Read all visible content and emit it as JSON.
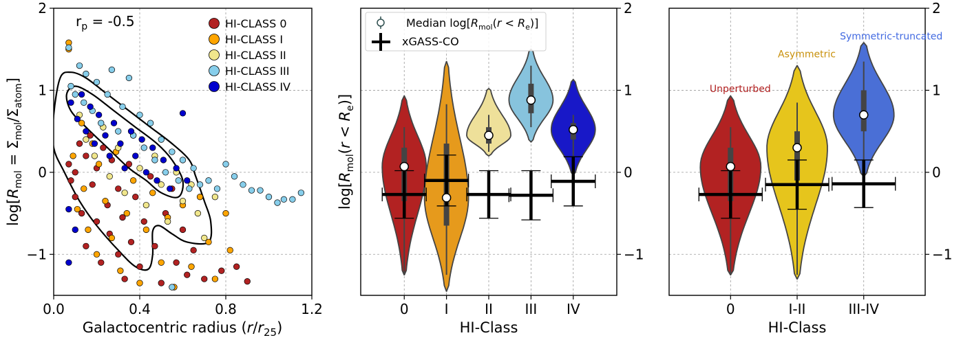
{
  "chart_data": [
    {
      "type": "scatter",
      "xlabel": "Galactocentric radius (r/r₂₅)",
      "ylabel": "log[R_mol = Σ_mol/Σ_atom]",
      "xlim": [
        0.0,
        1.2
      ],
      "ylim": [
        -1.5,
        2.0
      ],
      "xticks": [
        {
          "v": 0.0,
          "t": "0.0"
        },
        {
          "v": 0.4,
          "t": "0.4"
        },
        {
          "v": 0.8,
          "t": "0.8"
        },
        {
          "v": 1.2,
          "t": "1.2"
        }
      ],
      "yticks": [
        {
          "v": -1,
          "t": "−1"
        },
        {
          "v": 0,
          "t": "0"
        },
        {
          "v": 1,
          "t": "1"
        },
        {
          "v": 2,
          "t": "2"
        }
      ],
      "grid": true,
      "annotation": {
        "label": "r",
        "sub": "p",
        "rest": " = -0.5"
      },
      "legend_position": "top-right",
      "series": [
        {
          "name": "HI-CLASS 0",
          "color": "#b22222",
          "points": [
            [
              0.07,
              0.1
            ],
            [
              0.08,
              -0.1
            ],
            [
              0.1,
              0.0
            ],
            [
              0.1,
              -0.3
            ],
            [
              0.12,
              0.35
            ],
            [
              0.13,
              -0.5
            ],
            [
              0.15,
              0.2
            ],
            [
              0.15,
              -0.9
            ],
            [
              0.17,
              0.45
            ],
            [
              0.18,
              -0.15
            ],
            [
              0.2,
              -0.6
            ],
            [
              0.2,
              0.05
            ],
            [
              0.22,
              -1.1
            ],
            [
              0.23,
              0.3
            ],
            [
              0.25,
              -0.4
            ],
            [
              0.26,
              -0.75
            ],
            [
              0.27,
              0.15
            ],
            [
              0.3,
              -0.2
            ],
            [
              0.3,
              -1.0
            ],
            [
              0.32,
              -0.55
            ],
            [
              0.33,
              -1.3
            ],
            [
              0.35,
              0.1
            ],
            [
              0.36,
              -0.85
            ],
            [
              0.38,
              -0.3
            ],
            [
              0.4,
              -1.15
            ],
            [
              0.42,
              -0.6
            ],
            [
              0.45,
              -0.05
            ],
            [
              0.47,
              -0.9
            ],
            [
              0.5,
              -1.35
            ],
            [
              0.52,
              -0.5
            ],
            [
              0.55,
              -0.2
            ],
            [
              0.57,
              -1.1
            ],
            [
              0.6,
              -0.7
            ],
            [
              0.62,
              -1.25
            ],
            [
              0.65,
              -0.95
            ],
            [
              0.7,
              -1.3
            ],
            [
              0.78,
              -1.2
            ],
            [
              0.85,
              -1.15
            ],
            [
              0.9,
              -1.33
            ]
          ]
        },
        {
          "name": "HI-CLASS I",
          "color": "#ffa500",
          "points": [
            [
              0.07,
              1.58
            ],
            [
              0.07,
              1.5
            ],
            [
              0.09,
              0.2
            ],
            [
              0.11,
              -0.45
            ],
            [
              0.13,
              0.6
            ],
            [
              0.14,
              -0.2
            ],
            [
              0.16,
              -0.7
            ],
            [
              0.18,
              0.35
            ],
            [
              0.2,
              -1.0
            ],
            [
              0.21,
              0.1
            ],
            [
              0.24,
              -0.35
            ],
            [
              0.27,
              -0.8
            ],
            [
              0.29,
              0.25
            ],
            [
              0.31,
              -1.2
            ],
            [
              0.34,
              -0.5
            ],
            [
              0.37,
              -0.1
            ],
            [
              0.4,
              -1.35
            ],
            [
              0.43,
              -0.7
            ],
            [
              0.46,
              -0.25
            ],
            [
              0.5,
              -1.1
            ],
            [
              0.53,
              -0.55
            ],
            [
              0.56,
              -1.4
            ],
            [
              0.6,
              -0.4
            ],
            [
              0.64,
              -1.15
            ],
            [
              0.68,
              -0.3
            ],
            [
              0.72,
              -0.85
            ],
            [
              0.75,
              -1.3
            ],
            [
              0.8,
              -0.5
            ],
            [
              0.82,
              -0.95
            ]
          ]
        },
        {
          "name": "HI-CLASS II",
          "color": "#f0e68c",
          "points": [
            [
              0.12,
              0.7
            ],
            [
              0.15,
              0.4
            ],
            [
              0.19,
              0.2
            ],
            [
              0.23,
              0.55
            ],
            [
              0.26,
              -0.05
            ],
            [
              0.3,
              0.3
            ],
            [
              0.33,
              -0.25
            ],
            [
              0.37,
              0.45
            ],
            [
              0.4,
              0.05
            ],
            [
              0.43,
              -0.4
            ],
            [
              0.47,
              0.2
            ],
            [
              0.5,
              -0.15
            ],
            [
              0.53,
              -0.6
            ],
            [
              0.57,
              0.0
            ],
            [
              0.6,
              -0.35
            ],
            [
              0.64,
              -0.15
            ],
            [
              0.67,
              -0.5
            ],
            [
              0.7,
              -0.8
            ],
            [
              0.75,
              -0.3
            ]
          ]
        },
        {
          "name": "HI-CLASS III",
          "color": "#87ceeb",
          "points": [
            [
              0.07,
              1.52
            ],
            [
              0.08,
              1.05
            ],
            [
              0.1,
              0.95
            ],
            [
              0.12,
              1.3
            ],
            [
              0.14,
              0.85
            ],
            [
              0.15,
              1.2
            ],
            [
              0.18,
              0.75
            ],
            [
              0.2,
              1.1
            ],
            [
              0.22,
              0.6
            ],
            [
              0.25,
              0.95
            ],
            [
              0.27,
              1.25
            ],
            [
              0.3,
              0.5
            ],
            [
              0.32,
              0.8
            ],
            [
              0.35,
              1.15
            ],
            [
              0.37,
              0.45
            ],
            [
              0.4,
              0.7
            ],
            [
              0.42,
              0.3
            ],
            [
              0.45,
              0.6
            ],
            [
              0.47,
              0.15
            ],
            [
              0.5,
              0.4
            ],
            [
              0.52,
              0.0
            ],
            [
              0.55,
              0.25
            ],
            [
              0.58,
              -0.1
            ],
            [
              0.6,
              0.15
            ],
            [
              0.63,
              -0.2
            ],
            [
              0.65,
              0.05
            ],
            [
              0.68,
              -0.15
            ],
            [
              0.72,
              -0.1
            ],
            [
              0.76,
              -0.2
            ],
            [
              0.8,
              0.1
            ],
            [
              0.84,
              -0.05
            ],
            [
              0.88,
              -0.15
            ],
            [
              0.92,
              -0.22
            ],
            [
              0.96,
              -0.22
            ],
            [
              1.0,
              -0.3
            ],
            [
              1.04,
              -0.37
            ],
            [
              1.07,
              -0.33
            ],
            [
              1.11,
              -0.33
            ],
            [
              1.15,
              -0.25
            ],
            [
              0.55,
              -1.4
            ]
          ]
        },
        {
          "name": "HI-CLASS IV",
          "color": "#0000cd",
          "points": [
            [
              0.07,
              -0.45
            ],
            [
              0.07,
              -1.1
            ],
            [
              0.08,
              0.85
            ],
            [
              0.1,
              -0.7
            ],
            [
              0.11,
              0.65
            ],
            [
              0.13,
              0.95
            ],
            [
              0.15,
              0.5
            ],
            [
              0.17,
              0.8
            ],
            [
              0.19,
              0.35
            ],
            [
              0.21,
              0.7
            ],
            [
              0.24,
              0.45
            ],
            [
              0.26,
              0.2
            ],
            [
              0.28,
              0.6
            ],
            [
              0.31,
              0.35
            ],
            [
              0.33,
              0.05
            ],
            [
              0.36,
              0.5
            ],
            [
              0.38,
              0.2
            ],
            [
              0.41,
              0.4
            ],
            [
              0.43,
              0.0
            ],
            [
              0.46,
              0.3
            ],
            [
              0.48,
              -0.1
            ],
            [
              0.51,
              0.15
            ],
            [
              0.54,
              -0.2
            ],
            [
              0.57,
              0.05
            ],
            [
              0.6,
              0.72
            ],
            [
              0.62,
              -0.1
            ]
          ]
        }
      ]
    },
    {
      "type": "violin",
      "xlabel": "HI-Class",
      "ylabel": "log[R_mol(r < R_e)]",
      "categories": [
        "0",
        "I",
        "II",
        "III",
        "IV"
      ],
      "ylim": [
        -1.5,
        2.0
      ],
      "yticks": [
        {
          "v": -1,
          "t": "−1"
        },
        {
          "v": 0,
          "t": "0"
        },
        {
          "v": 1,
          "t": "1"
        },
        {
          "v": 2,
          "t": "2"
        }
      ],
      "grid": true,
      "legend_position": "top-left",
      "legend": [
        "Median log[R_mol(r < R_e)]",
        "xGASS-CO"
      ],
      "violins": [
        {
          "color": "#b22222",
          "median": 0.07,
          "q1": -0.35,
          "q3": 0.3,
          "lo": -1.25,
          "hi": 0.55,
          "min": -1.25,
          "max": 0.93
        },
        {
          "color": "#e69a1c",
          "median": -0.31,
          "q1": -0.65,
          "q3": 0.35,
          "lo": -1.25,
          "hi": 0.83,
          "min": -1.45,
          "max": 1.35
        },
        {
          "color": "#eee09a",
          "median": 0.45,
          "q1": 0.35,
          "q3": 0.55,
          "lo": 0.25,
          "hi": 0.7,
          "min": 0.2,
          "max": 1.02
        },
        {
          "color": "#87c3dd",
          "median": 0.88,
          "q1": 0.72,
          "q3": 1.08,
          "lo": 0.55,
          "hi": 1.3,
          "min": 0.37,
          "max": 1.5
        },
        {
          "color": "#1818c8",
          "median": 0.52,
          "q1": 0.4,
          "q3": 0.6,
          "lo": 0.0,
          "hi": 0.7,
          "min": -0.03,
          "max": 1.13
        }
      ],
      "xgass": [
        {
          "y": -0.27,
          "err": 0.29
        },
        {
          "y": -0.1,
          "err": 0.31
        },
        {
          "y": -0.27,
          "err": 0.29
        },
        {
          "y": -0.28,
          "err": 0.3
        },
        {
          "y": -0.11,
          "err": 0.3
        }
      ]
    },
    {
      "type": "violin",
      "xlabel": "HI-Class",
      "categories": [
        "0",
        "I-II",
        "III-IV"
      ],
      "ylim": [
        -1.5,
        2.0
      ],
      "yticks": [
        {
          "v": -1,
          "t": "−1"
        },
        {
          "v": 0,
          "t": "0"
        },
        {
          "v": 1,
          "t": "1"
        },
        {
          "v": 2,
          "t": "2"
        }
      ],
      "grid": true,
      "violins": [
        {
          "color": "#b22222",
          "median": 0.07,
          "q1": -0.35,
          "q3": 0.3,
          "lo": -1.25,
          "hi": 0.55,
          "min": -1.25,
          "max": 0.93,
          "annotation": "Unperturbed",
          "annotation_color": "#b22222",
          "annotation_y": 0.98
        },
        {
          "color": "#e6c51c",
          "median": 0.3,
          "q1": -0.1,
          "q3": 0.5,
          "lo": -1.25,
          "hi": 0.85,
          "min": -1.3,
          "max": 1.3,
          "annotation": "Asymmetric",
          "annotation_color": "#c8900b",
          "annotation_y": 1.4
        },
        {
          "color": "#4a6fd6",
          "median": 0.7,
          "q1": 0.5,
          "q3": 1.0,
          "lo": 0.0,
          "hi": 1.35,
          "min": -0.05,
          "max": 1.58,
          "annotation": "Symmetric-truncated",
          "annotation_color": "#4169e1",
          "annotation_y": 1.62
        }
      ],
      "xgass": [
        {
          "y": -0.27,
          "err": 0.29
        },
        {
          "y": -0.15,
          "err": 0.3
        },
        {
          "y": -0.14,
          "err": 0.29
        }
      ]
    }
  ]
}
